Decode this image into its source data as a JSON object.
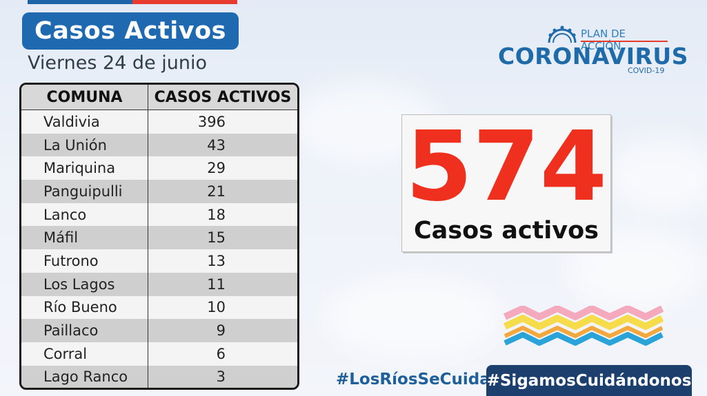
{
  "header": {
    "title": "Casos Activos",
    "date": "Viernes 24 de junio"
  },
  "table": {
    "columns": [
      "COMUNA",
      "CASOS ACTIVOS"
    ],
    "rows": [
      {
        "comuna": "Valdivia",
        "casos": "396"
      },
      {
        "comuna": "La Unión",
        "casos": "43"
      },
      {
        "comuna": "Mariquina",
        "casos": "29"
      },
      {
        "comuna": "Panguipulli",
        "casos": "21"
      },
      {
        "comuna": "Lanco",
        "casos": "18"
      },
      {
        "comuna": "Máfil",
        "casos": "15"
      },
      {
        "comuna": "Futrono",
        "casos": "13"
      },
      {
        "comuna": "Los Lagos",
        "casos": "11"
      },
      {
        "comuna": "Río Bueno",
        "casos": "10"
      },
      {
        "comuna": "Paillaco",
        "casos": "9"
      },
      {
        "comuna": "Corral",
        "casos": "6"
      },
      {
        "comuna": "Lago Ranco",
        "casos": "3"
      }
    ]
  },
  "logo": {
    "plan": "PLAN DE ACCIÓN",
    "name": "CORONAVIRUS",
    "sub": "COVID-19",
    "icon": "virus-icon"
  },
  "total": {
    "value": "574",
    "label": "Casos activos"
  },
  "footer": {
    "hashtag1": "#LosRíosSeCuida",
    "hashtag2": "#SigamosCuidándonos"
  },
  "colors": {
    "title_bg": "#1f69b1",
    "big_number": "#f0301e",
    "brand_blue": "#1f6aa8",
    "hashtag_bg": "#1c3f6e"
  }
}
